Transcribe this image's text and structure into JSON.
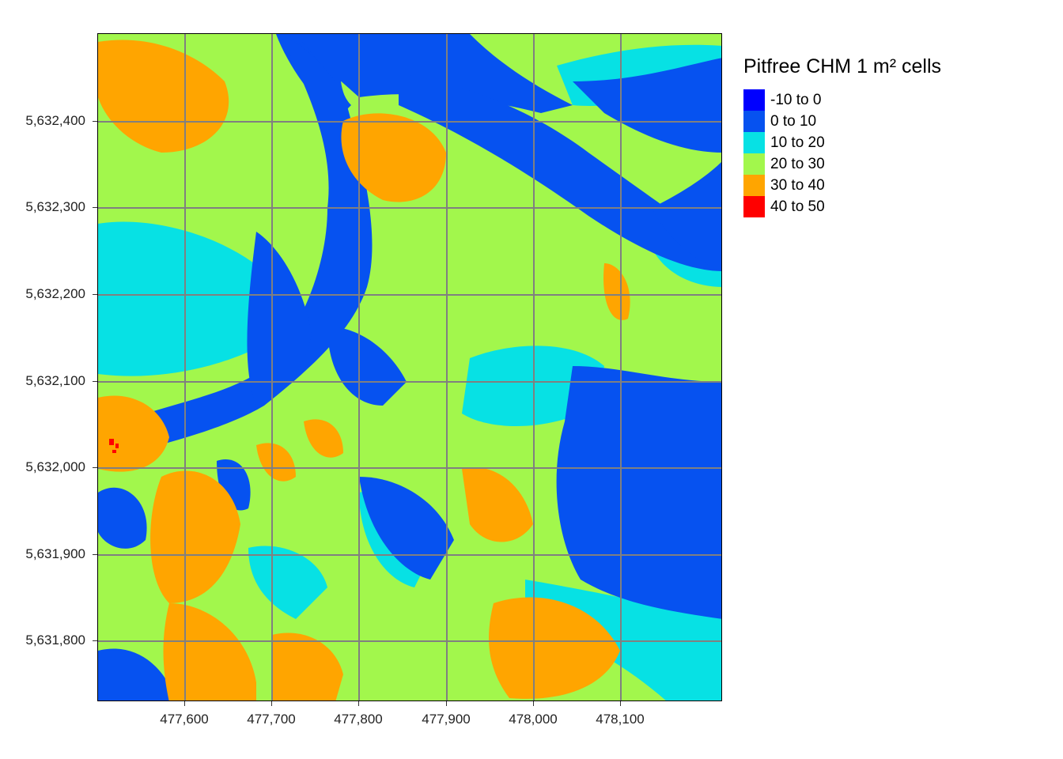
{
  "map": {
    "legend_title": "Pitfree CHM 1 m² cells",
    "classes": [
      {
        "label": "-10 to 0",
        "color": "#0000ff"
      },
      {
        "label": "0 to 10",
        "color": "#0652f0"
      },
      {
        "label": "10 to 20",
        "color": "#07e1e4"
      },
      {
        "label": "20 to 30",
        "color": "#a2f74c"
      },
      {
        "label": "30 to 40",
        "color": "#ffa500"
      },
      {
        "label": "40 to 50",
        "color": "#ff0000"
      }
    ],
    "x_ticks": [
      "477,600",
      "477,700",
      "477,800",
      "477,900",
      "478,000",
      "478,100"
    ],
    "y_ticks": [
      "5,632,400",
      "5,632,300",
      "5,632,200",
      "5,632,100",
      "5,632,000",
      "5,631,900",
      "5,631,800"
    ],
    "grid_color": "#808080"
  }
}
